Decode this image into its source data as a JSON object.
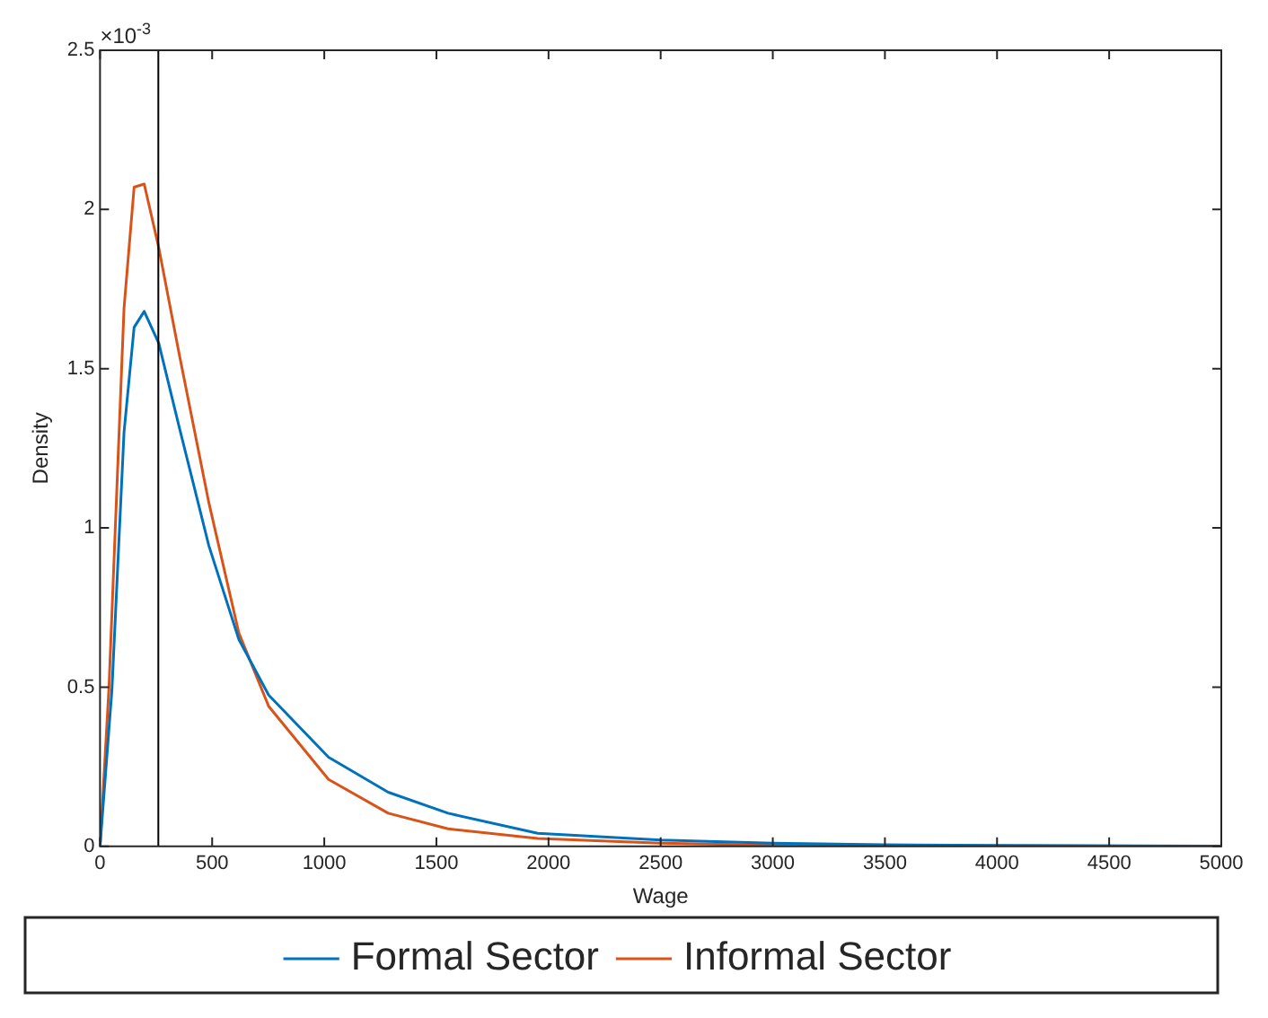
{
  "chart_data": {
    "type": "line",
    "xlabel": "Wage",
    "ylabel": "Density",
    "annotations": [
      "×10$^{-3}$"
    ],
    "xlim": [
      0,
      5000
    ],
    "xticks": [
      0,
      500,
      1000,
      1500,
      2000,
      2500,
      3000,
      3500,
      4000,
      4500,
      5000
    ],
    "ylim": [
      0,
      2.5
    ],
    "yticks": [
      0,
      0.5,
      1,
      1.5,
      2,
      2.5
    ],
    "grid": false,
    "legend": "bottom",
    "marker": "none",
    "line_style": "solid",
    "ref_lines": [
      {
        "axis": "x",
        "value": 260,
        "color": "#000000"
      }
    ],
    "series": [
      {
        "name": "Formal Sector",
        "color": "#0072bd",
        "x": [
          0,
          53,
          107,
          152,
          197,
          262,
          352,
          485,
          619,
          752,
          1019,
          1285,
          1552,
          1952,
          2500,
          3000,
          3500,
          4000,
          5000
        ],
        "values": [
          0,
          0.49,
          1.3,
          1.63,
          1.68,
          1.58,
          1.32,
          0.945,
          0.65,
          0.475,
          0.28,
          0.17,
          0.104,
          0.041,
          0.02,
          0.01,
          0.005,
          0.003,
          0.001
        ]
      },
      {
        "name": "Informal Sector",
        "color": "#d95319",
        "x": [
          0,
          40,
          107,
          152,
          197,
          262,
          352,
          485,
          619,
          752,
          1019,
          1285,
          1552,
          1952,
          2500,
          3000,
          5000
        ],
        "values": [
          0,
          0.5,
          1.69,
          2.07,
          2.08,
          1.88,
          1.55,
          1.08,
          0.67,
          0.44,
          0.21,
          0.104,
          0.055,
          0.025,
          0.01,
          0.004,
          0
        ]
      }
    ]
  }
}
